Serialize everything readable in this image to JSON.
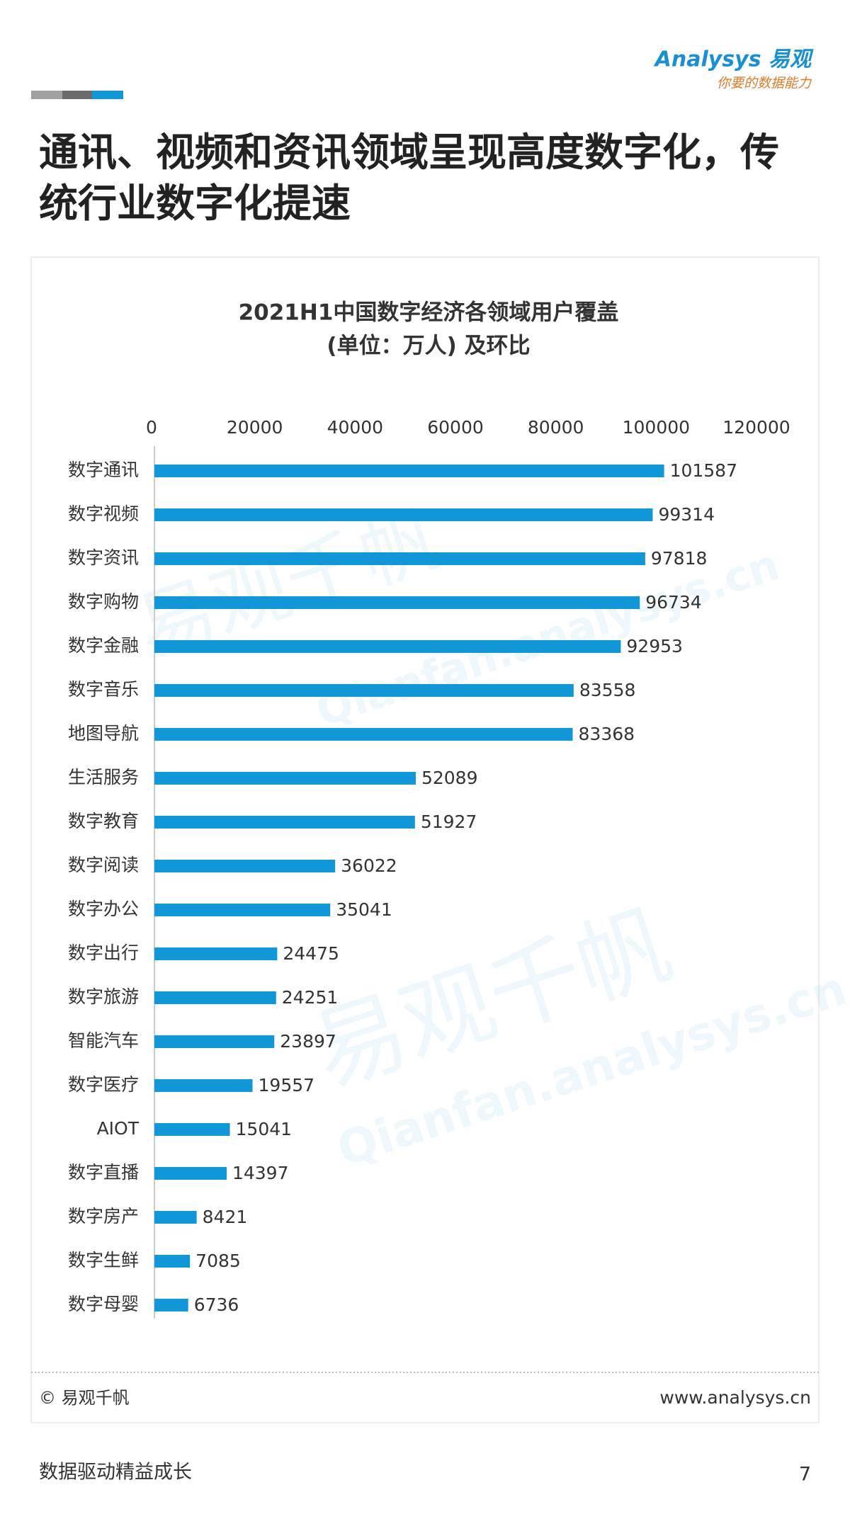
{
  "brand": {
    "logo": "Analysys 易观",
    "slogan": "你要的数据能力"
  },
  "header": {
    "title_lines": [
      "通讯、视频和资讯领域呈现高度数字化，传",
      "统行业数字化提速"
    ]
  },
  "chart_data": {
    "type": "hbar",
    "title": "2021H1中国数字经济各领域用户覆盖",
    "subtitle": "(单位：万人) 及环比",
    "categories": [
      "数字通讯",
      "数字视频",
      "数字资讯",
      "数字购物",
      "数字金融",
      "数字音乐",
      "地图导航",
      "生活服务",
      "数字教育",
      "数字阅读",
      "数字办公",
      "数字出行",
      "数字旅游",
      "智能汽车",
      "数字医疗",
      "AIOT",
      "数字直播",
      "数字房产",
      "数字生鲜",
      "数字母婴"
    ],
    "values": [
      101587,
      99314,
      97818,
      96734,
      92953,
      83558,
      83368,
      52089,
      51927,
      36022,
      35041,
      24475,
      24251,
      23897,
      19557,
      15041,
      14397,
      8421,
      7085,
      6736
    ],
    "color": "#1196d8",
    "xlim": [
      0,
      120000
    ],
    "xticks": [
      0,
      20000,
      40000,
      60000,
      80000,
      100000,
      120000
    ],
    "grid": false
  },
  "watermark": {
    "text": "易观千帆",
    "url": "Qianfan.analysys.cn"
  },
  "card_footer": {
    "copyright": "© 易观千帆",
    "site": "www.analysys.cn"
  },
  "page_footer": {
    "slogan": "数据驱动精益成长",
    "page": "7"
  }
}
